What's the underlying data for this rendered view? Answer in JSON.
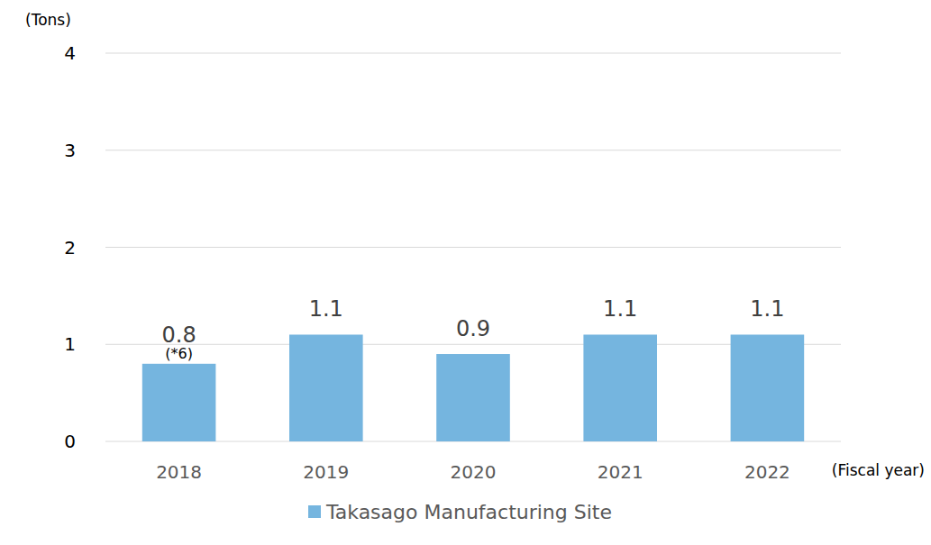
{
  "chart_data": {
    "type": "bar",
    "y_label": "(Tons)",
    "x_label": "(Fiscal year)",
    "categories": [
      "2018",
      "2019",
      "2020",
      "2021",
      "2022"
    ],
    "series": [
      {
        "name": "Takasago Manufacturing Site",
        "color": "#75b5df",
        "values": [
          0.8,
          1.1,
          0.9,
          1.1,
          1.1
        ]
      }
    ],
    "ylim": [
      0,
      4
    ],
    "yticks": [
      0,
      1,
      2,
      3,
      4
    ],
    "grid": true,
    "data_labels": true,
    "legend": "bottom",
    "annotations": [
      {
        "category": "2018",
        "text": "(*6)"
      }
    ]
  }
}
